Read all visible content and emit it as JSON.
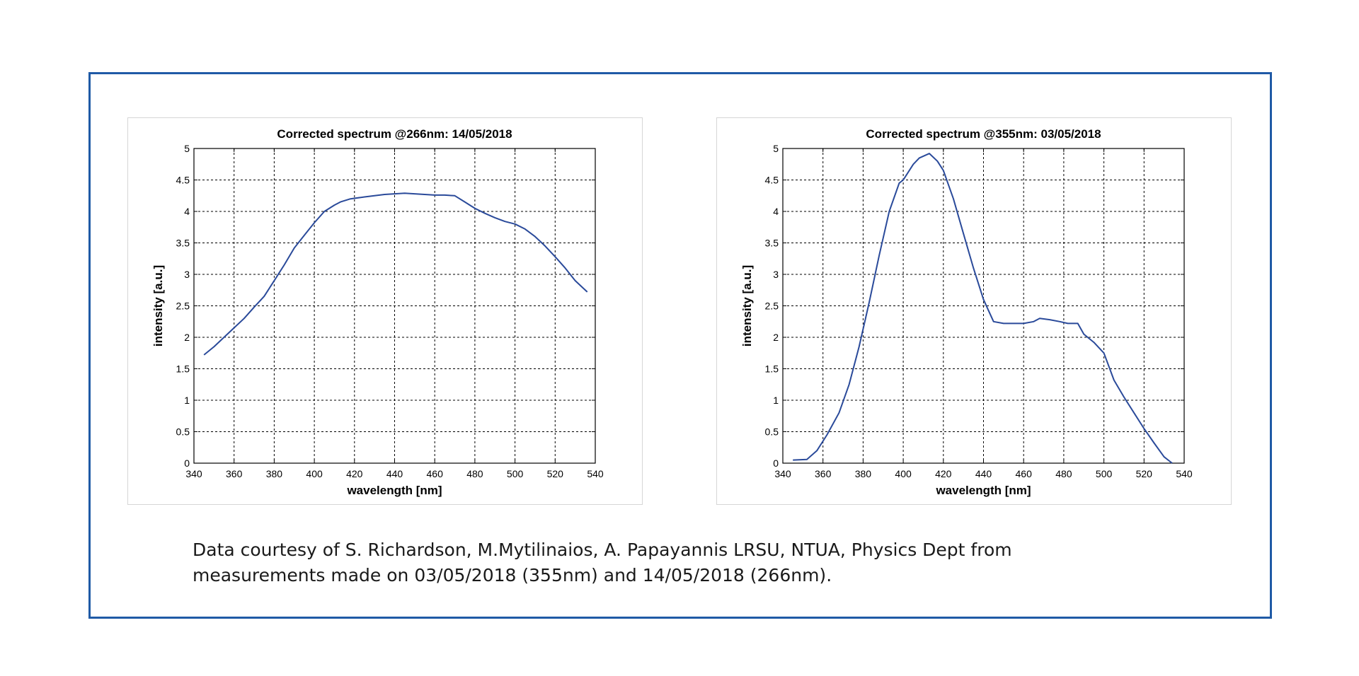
{
  "colors": {
    "frame": "#1f5aa6",
    "line": "#2a4a9a",
    "grid": "#000000"
  },
  "chart_data": [
    {
      "type": "line",
      "title": "Corrected spectrum @266nm: 14/05/2018",
      "xlabel": "wavelength [nm]",
      "ylabel": "intensity [a.u.]",
      "xlim": [
        340,
        540
      ],
      "ylim": [
        0,
        5
      ],
      "xticks": [
        340,
        360,
        380,
        400,
        420,
        440,
        460,
        480,
        500,
        520,
        540
      ],
      "yticks": [
        0,
        0.5,
        1,
        1.5,
        2,
        2.5,
        3,
        3.5,
        4,
        4.5,
        5
      ],
      "grid": true,
      "series": [
        {
          "x": [
            345,
            350,
            355,
            360,
            365,
            370,
            375,
            380,
            385,
            390,
            395,
            400,
            405,
            410,
            413,
            418,
            425,
            430,
            435,
            440,
            445,
            450,
            455,
            460,
            465,
            470,
            475,
            480,
            485,
            490,
            495,
            500,
            505,
            510,
            515,
            520,
            525,
            530,
            536
          ],
          "y": [
            1.72,
            1.85,
            2.0,
            2.15,
            2.3,
            2.48,
            2.65,
            2.9,
            3.15,
            3.42,
            3.62,
            3.82,
            4.0,
            4.1,
            4.15,
            4.2,
            4.23,
            4.25,
            4.27,
            4.28,
            4.29,
            4.28,
            4.27,
            4.26,
            4.26,
            4.25,
            4.15,
            4.05,
            3.97,
            3.9,
            3.84,
            3.8,
            3.72,
            3.6,
            3.45,
            3.28,
            3.1,
            2.9,
            2.72
          ]
        }
      ]
    },
    {
      "type": "line",
      "title": "Corrected spectrum @355nm: 03/05/2018",
      "xlabel": "wavelength [nm]",
      "ylabel": "intensity [a.u.]",
      "xlim": [
        340,
        540
      ],
      "ylim": [
        0,
        5
      ],
      "xticks": [
        340,
        360,
        380,
        400,
        420,
        440,
        460,
        480,
        500,
        520,
        540
      ],
      "yticks": [
        0,
        0.5,
        1,
        1.5,
        2,
        2.5,
        3,
        3.5,
        4,
        4.5,
        5
      ],
      "grid": true,
      "series": [
        {
          "x": [
            345,
            352,
            357,
            362,
            368,
            373,
            378,
            383,
            388,
            393,
            398,
            400,
            405,
            408,
            413,
            417,
            420,
            425,
            430,
            435,
            440,
            445,
            450,
            455,
            460,
            465,
            468,
            473,
            478,
            482,
            487,
            490,
            495,
            500,
            505,
            510,
            515,
            520,
            525,
            530,
            534
          ],
          "y": [
            0.05,
            0.06,
            0.2,
            0.45,
            0.8,
            1.25,
            1.85,
            2.55,
            3.3,
            4.0,
            4.45,
            4.5,
            4.75,
            4.85,
            4.92,
            4.8,
            4.65,
            4.2,
            3.65,
            3.1,
            2.6,
            2.25,
            2.22,
            2.22,
            2.22,
            2.25,
            2.3,
            2.28,
            2.25,
            2.22,
            2.22,
            2.05,
            1.92,
            1.75,
            1.32,
            1.05,
            0.8,
            0.55,
            0.32,
            0.1,
            0.0
          ]
        }
      ]
    }
  ],
  "caption": {
    "line1": "Data courtesy of S. Richardson, M.Mytilinaios, A. Papayannis LRSU, NTUA, Physics Dept from",
    "line2": "measurements made on 03/05/2018 (355nm) and 14/05/2018 (266nm)."
  }
}
